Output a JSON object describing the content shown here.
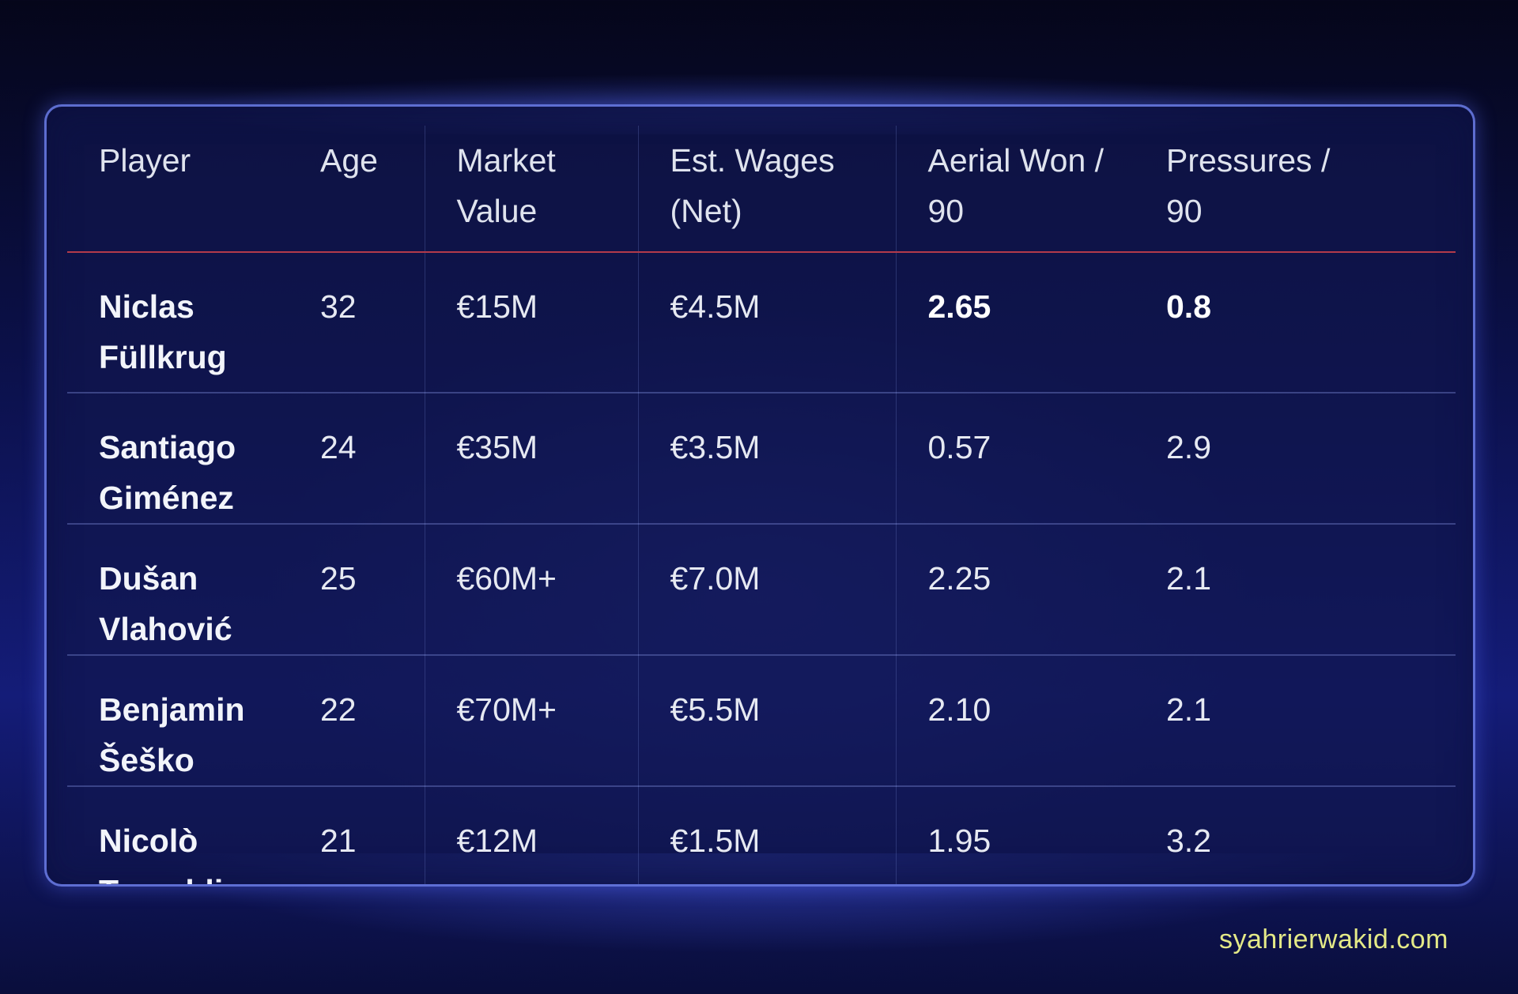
{
  "table": {
    "headers": [
      {
        "line1": "Player",
        "line2": ""
      },
      {
        "line1": "Age",
        "line2": ""
      },
      {
        "line1": "Market",
        "line2": "Value"
      },
      {
        "line1": "Est. Wages",
        "line2": "(Net)"
      },
      {
        "line1": "Aerial Won /",
        "line2": "90"
      },
      {
        "line1": "Pressures /",
        "line2": "90"
      }
    ],
    "rows": [
      {
        "first": "Niclas",
        "last": "Füllkrug",
        "age": "32",
        "market_value": "€15M",
        "wages": "€4.5M",
        "aerial": "2.65",
        "pressures": "0.8"
      },
      {
        "first": "Santiago",
        "last": "Giménez",
        "age": "24",
        "market_value": "€35M",
        "wages": "€3.5M",
        "aerial": "0.57",
        "pressures": "2.9"
      },
      {
        "first": "Dušan",
        "last": "Vlahović",
        "age": "25",
        "market_value": "€60M+",
        "wages": "€7.0M",
        "aerial": "2.25",
        "pressures": "2.1"
      },
      {
        "first": "Benjamin",
        "last": "Šeško",
        "age": "22",
        "market_value": "€70M+",
        "wages": "€5.5M",
        "aerial": "2.10",
        "pressures": "2.1"
      },
      {
        "first": "Nicolò",
        "last": "Tresoldi",
        "age": "21",
        "market_value": "€12M",
        "wages": "€1.5M",
        "aerial": "1.95",
        "pressures": "3.2"
      }
    ]
  },
  "watermark": "syahrierwakid.com",
  "colors": {
    "background": "#0b1048",
    "card_border": "#7890ff",
    "header_divider": "#b33a4a",
    "watermark": "#e4e987"
  }
}
